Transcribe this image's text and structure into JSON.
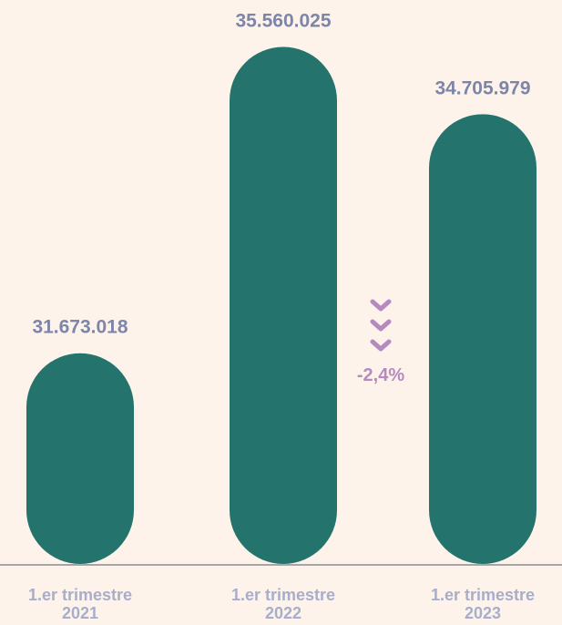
{
  "chart_data": {
    "type": "bar",
    "categories": [
      [
        "1.er trimestre",
        "2021"
      ],
      [
        "1.er trimestre",
        "2022"
      ],
      [
        "1.er trimestre",
        "2023"
      ]
    ],
    "values": [
      31673018,
      35560025,
      34705979
    ],
    "value_labels": [
      "31.673.018",
      "35.560.025",
      "34.705.979"
    ],
    "color": "#24736d",
    "ylim": [
      29000000,
      35600000
    ],
    "annotation": "-2,4%"
  }
}
